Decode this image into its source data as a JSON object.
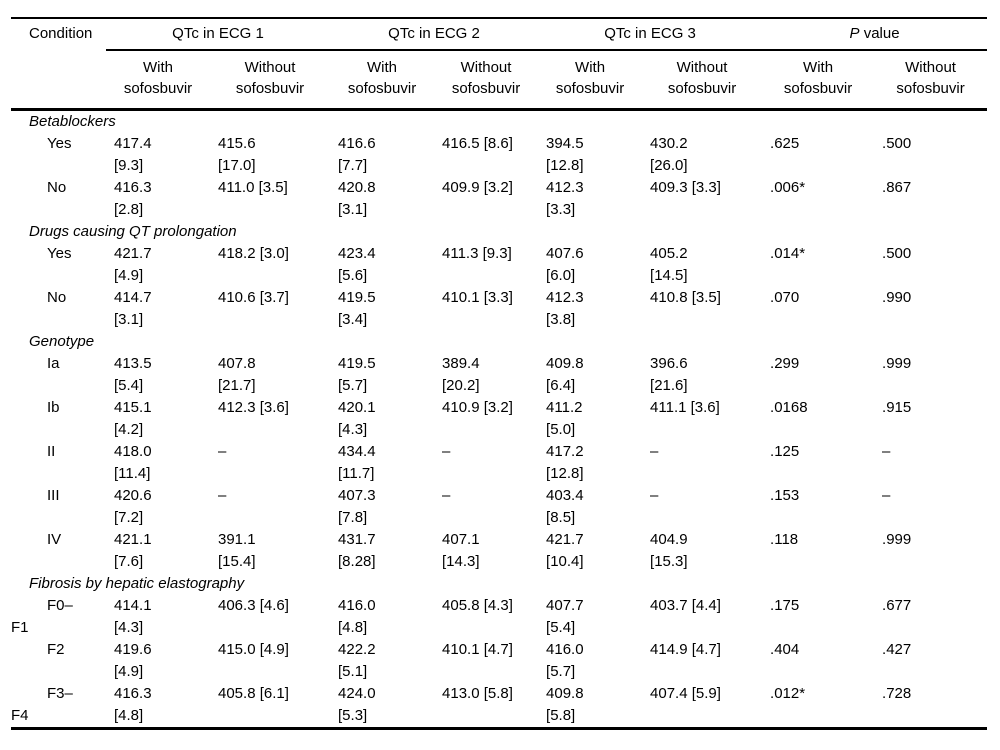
{
  "table": {
    "col1_header": "Condition",
    "groups": [
      {
        "label": "QTc in ECG 1"
      },
      {
        "label": "QTc in ECG 2"
      },
      {
        "label": "QTc in ECG 3"
      },
      {
        "label_italic": "P",
        "label_rest": " value"
      }
    ],
    "subheaders": [
      "With\nsofosbuvir",
      "Without\nsofosbuvir",
      "With\nsofosbuvir",
      "Without\nsofosbuvir",
      "With\nsofosbuvir",
      "Without\nsofosbuvir",
      "With\nsofosbuvir",
      "Without\nsofosbuvir"
    ],
    "rows": [
      {
        "type": "section",
        "label": "Betablockers"
      },
      {
        "type": "data",
        "condition": "Yes",
        "cells": [
          "417.4\n[9.3]",
          "415.6\n[17.0]",
          "416.6\n[7.7]",
          "416.5 [8.6]",
          "394.5\n[12.8]",
          "430.2\n[26.0]",
          ".625",
          ".500"
        ]
      },
      {
        "type": "data",
        "condition": "No",
        "cells": [
          "416.3\n[2.8]",
          "411.0 [3.5]",
          "420.8\n[3.1]",
          "409.9 [3.2]",
          "412.3\n[3.3]",
          "409.3 [3.3]",
          ".006*",
          ".867"
        ]
      },
      {
        "type": "section",
        "label": "Drugs causing QT prolongation"
      },
      {
        "type": "data",
        "condition": "Yes",
        "cells": [
          "421.7\n[4.9]",
          "418.2 [3.0]",
          "423.4\n[5.6]",
          "411.3 [9.3]",
          "407.6\n[6.0]",
          "405.2\n[14.5]",
          ".014*",
          ".500"
        ]
      },
      {
        "type": "data",
        "condition": "No",
        "cells": [
          "414.7\n[3.1]",
          "410.6 [3.7]",
          "419.5\n[3.4]",
          "410.1 [3.3]",
          "412.3\n[3.8]",
          "410.8 [3.5]",
          ".070",
          ".990"
        ]
      },
      {
        "type": "section",
        "label": "Genotype"
      },
      {
        "type": "data",
        "condition": "Ia",
        "cells": [
          "413.5\n[5.4]",
          "407.8\n[21.7]",
          "419.5\n[5.7]",
          "389.4\n[20.2]",
          "409.8\n[6.4]",
          "396.6\n[21.6]",
          ".299",
          ".999"
        ]
      },
      {
        "type": "data",
        "condition": "Ib",
        "cells": [
          "415.1\n[4.2]",
          "412.3 [3.6]",
          "420.1\n[4.3]",
          "410.9 [3.2]",
          "411.2\n[5.0]",
          "411.1 [3.6]",
          ".0168",
          ".915"
        ]
      },
      {
        "type": "data",
        "condition": "II",
        "cells": [
          "418.0\n[11.4]",
          "–",
          "434.4\n[11.7]",
          "–",
          "417.2\n[12.8]",
          "–",
          ".125",
          "–"
        ]
      },
      {
        "type": "data",
        "condition": "III",
        "cells": [
          "420.6\n[7.2]",
          "–",
          "407.3\n[7.8]",
          "–",
          "403.4\n[8.5]",
          "–",
          ".153",
          "–"
        ]
      },
      {
        "type": "data",
        "condition": "IV",
        "cells": [
          "421.1\n[7.6]",
          "391.1\n[15.4]",
          "431.7\n[8.28]",
          "407.1\n[14.3]",
          "421.7\n[10.4]",
          "404.9\n[15.3]",
          ".118",
          ".999"
        ]
      },
      {
        "type": "section",
        "label": "Fibrosis by hepatic elastography"
      },
      {
        "type": "data",
        "condition": "F0–\nF1",
        "cells": [
          "414.1\n[4.3]",
          "406.3 [4.6]",
          "416.0\n[4.8]",
          "405.8 [4.3]",
          "407.7\n[5.4]",
          "403.7 [4.4]",
          ".175",
          ".677"
        ]
      },
      {
        "type": "data",
        "condition": "F2",
        "cells": [
          "419.6\n[4.9]",
          "415.0 [4.9]",
          "422.2\n[5.1]",
          "410.1 [4.7]",
          "416.0\n[5.7]",
          "414.9 [4.7]",
          ".404",
          ".427"
        ]
      },
      {
        "type": "data",
        "condition": "F3–\nF4",
        "cells": [
          "416.3\n[4.8]",
          "405.8 [6.1]",
          "424.0\n[5.3]",
          "413.0 [5.8]",
          "409.8\n[5.8]",
          "407.4 [5.9]",
          ".012*",
          ".728"
        ]
      }
    ]
  }
}
